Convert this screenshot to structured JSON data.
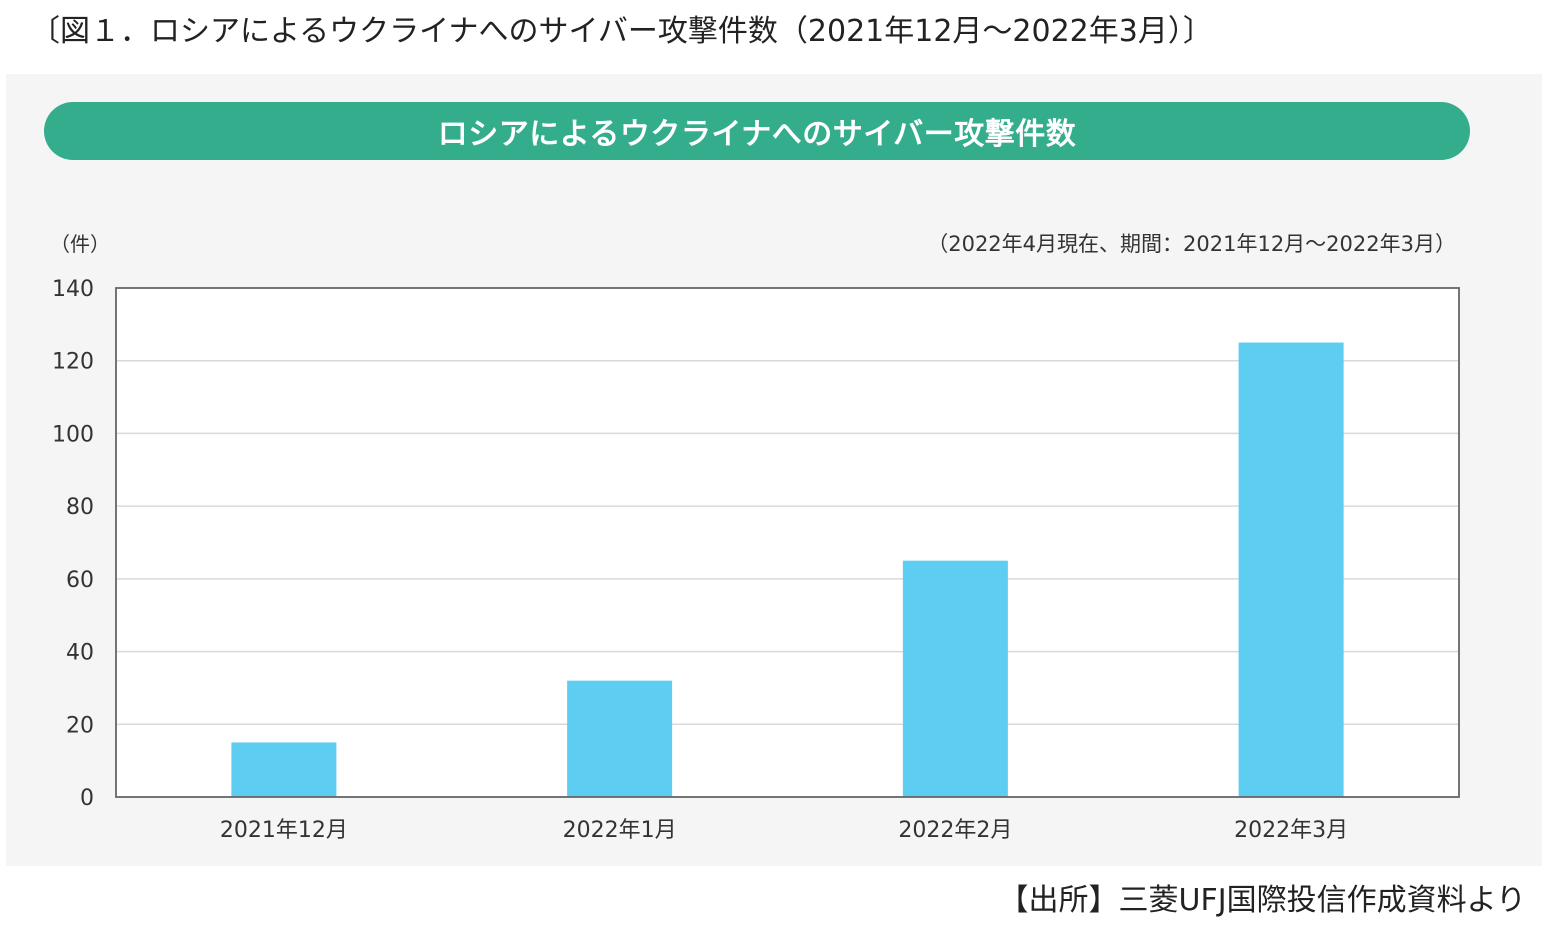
{
  "figure_title": "〔図１．ロシアによるウクライナへのサイバー攻撃件数（2021年12月～2022年3月）〕",
  "source_note": "【出所】三菱UFJ国際投信作成資料より",
  "chart_data": {
    "type": "bar",
    "title": "ロシアによるウクライナへのサイバー攻撃件数",
    "subtitle": "（2022年4月現在、期間：2021年12月～2022年3月）",
    "ylabel": "（件）",
    "xlabel": "",
    "categories": [
      "2021年12月",
      "2022年1月",
      "2022年2月",
      "2022年3月"
    ],
    "values": [
      15,
      32,
      65,
      125
    ],
    "ylim": [
      0,
      140
    ],
    "yticks": [
      0,
      20,
      40,
      60,
      80,
      100,
      120,
      140
    ],
    "grid": true,
    "colors": {
      "bar": "#5ecdf2",
      "banner": "#33ad8c",
      "grid": "#d9d9d9",
      "axis": "#666666"
    }
  }
}
